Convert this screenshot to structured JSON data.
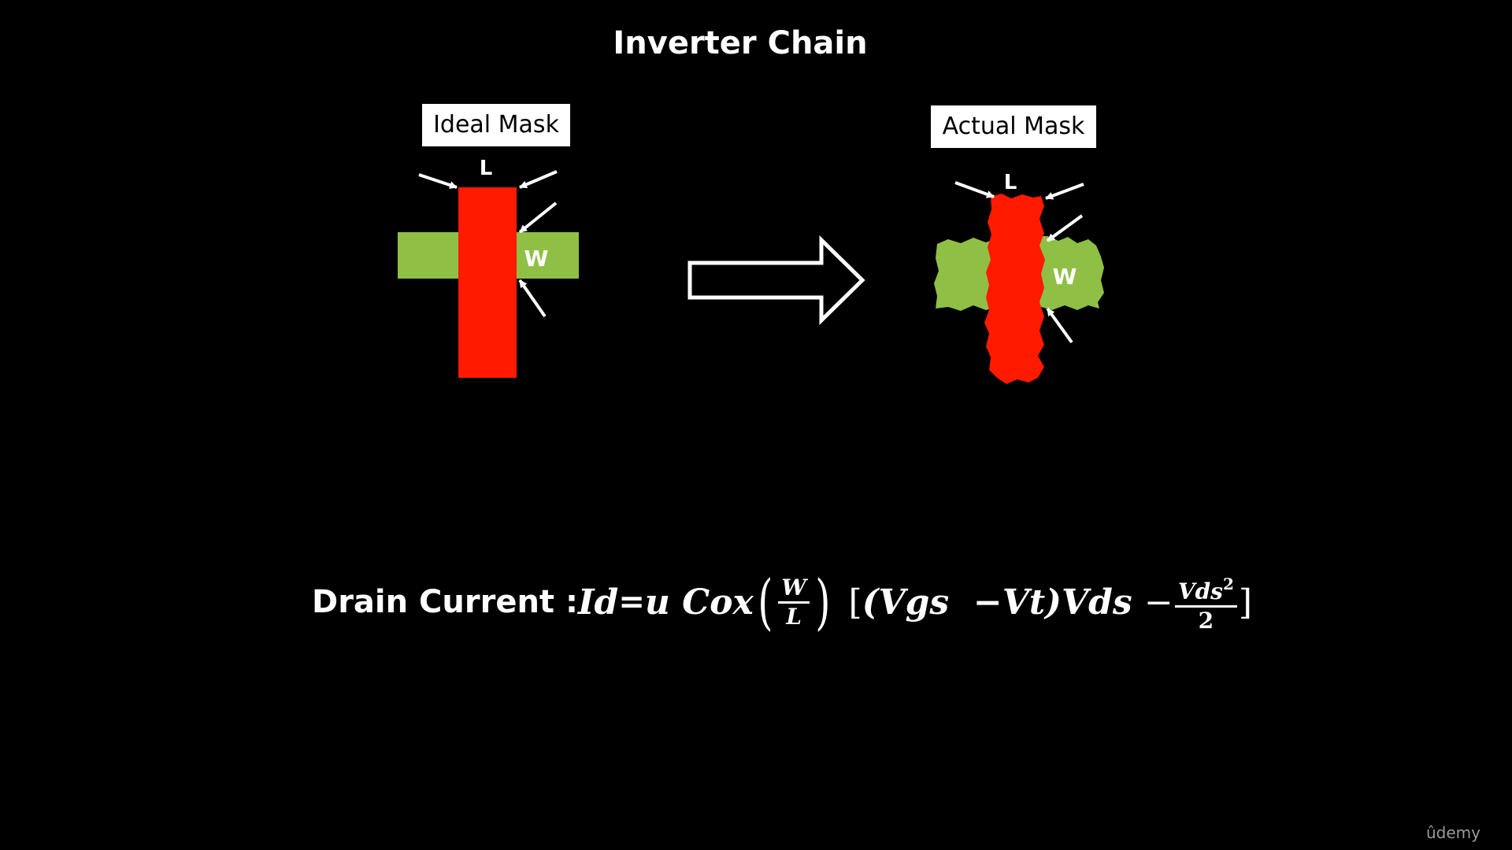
{
  "slide": {
    "title": "Inverter Chain",
    "ideal_label": "Ideal Mask",
    "actual_label": "Actual Mask",
    "length_letter": "L",
    "width_letter": "W"
  },
  "equation": {
    "prefix": "Drain Current : ",
    "lhs": "Id",
    "equals": " = ",
    "coefficient": "u Cox ",
    "ratio_numerator": "W",
    "ratio_denominator": "L",
    "bracket_open": "[",
    "paren_term": "(Vgs  −Vt)",
    "vds_term": "Vds ",
    "minus": " −",
    "frac_numerator": "Vds",
    "frac_exponent": "2",
    "frac_denominator": "2",
    "bracket_close": "]"
  },
  "watermark": "ûdemy",
  "colors": {
    "background": "#000000",
    "gate": "#ff1a00",
    "diffusion": "#8fc045",
    "text": "#ffffff"
  }
}
